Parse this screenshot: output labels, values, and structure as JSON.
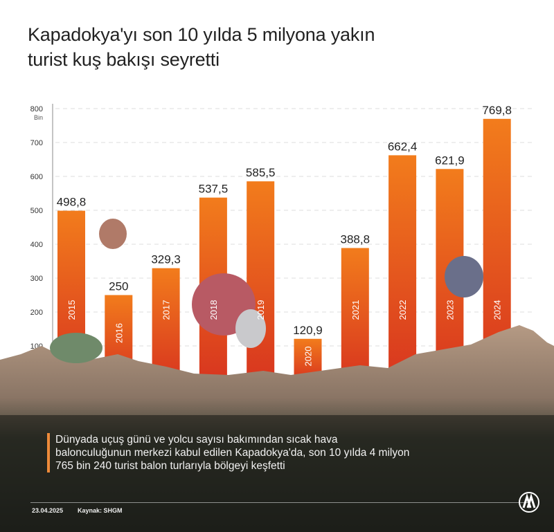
{
  "title_lines": [
    "Kapadokya'yı son 10 yılda 5 milyona yakın",
    "turist kuş bakışı seyretti"
  ],
  "chart_data": {
    "type": "bar",
    "categories": [
      "2015",
      "2016",
      "2017",
      "2018",
      "2019",
      "2020",
      "2021",
      "2022",
      "2023",
      "2024"
    ],
    "values": [
      498.8,
      250,
      329.3,
      537.5,
      585.5,
      120.9,
      388.8,
      662.4,
      621.9,
      769.8
    ],
    "value_labels": [
      "498,8",
      "250",
      "329,3",
      "537,5",
      "585,5",
      "120,9",
      "388,8",
      "662,4",
      "621,9",
      "769,8"
    ],
    "ylabel": "Bin",
    "yticks": [
      100,
      200,
      300,
      400,
      500,
      600,
      700,
      800
    ],
    "ylim": [
      0,
      800
    ],
    "grid": true,
    "colors": {
      "bar_top": "#f27c1c",
      "bar_bottom": "#d8361f"
    }
  },
  "note": "Dünyada uçuş günü ve yolcu sayısı bakımından sıcak hava balonculuğunun merkezi kabul edilen Kapadokya'da, son 10 yılda 4 milyon 765 bin 240 turist balon turlarıyla bölgeyi keşfetti",
  "footer": {
    "date": "23.04.2025",
    "source": "Kaynak: SHGM"
  },
  "logo": "AA"
}
